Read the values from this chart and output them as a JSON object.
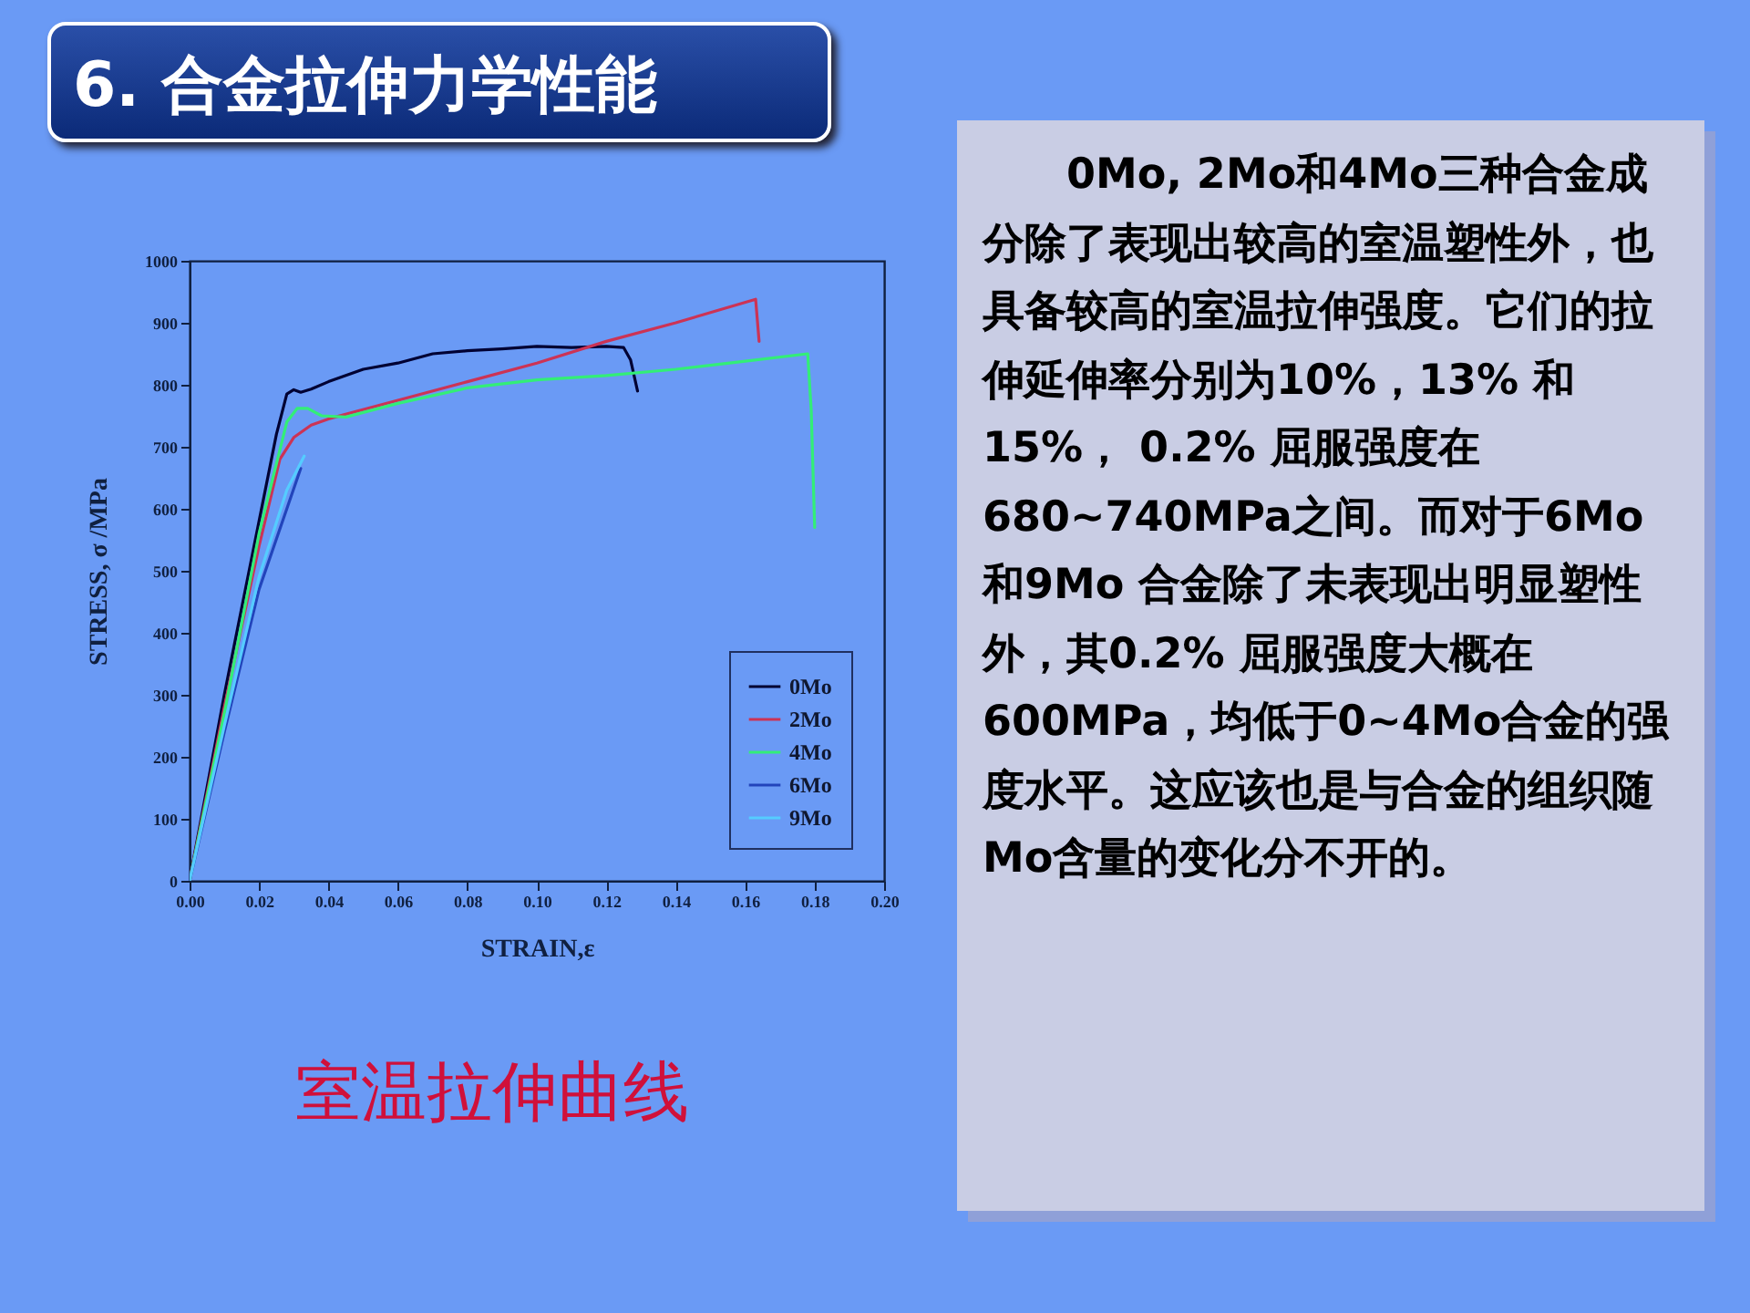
{
  "chart_data": {
    "type": "line",
    "title": "6. 合金拉伸力学性能",
    "xlabel": "STRAIN,ε",
    "ylabel": "STRESS, σ /MPa",
    "xlim": [
      0,
      0.2
    ],
    "xticks": [
      {
        "value": 0,
        "label": "0.00"
      },
      0.02,
      0.04,
      0.06,
      0.08,
      {
        "value": 0.1,
        "label": "0.10"
      },
      0.12,
      0.14,
      0.16,
      0.18,
      {
        "value": 0.2,
        "label": "0.20"
      }
    ],
    "ylim": [
      0,
      1000
    ],
    "yticks": [
      0,
      100,
      200,
      300,
      400,
      500,
      600,
      700,
      800,
      900,
      1000
    ],
    "grid": false,
    "legend": "bottom right",
    "marker": "none",
    "line_style": "solid",
    "series": [
      {
        "name": "0Mo",
        "color": "#000033",
        "x": [
          0,
          0.01,
          0.02,
          0.025,
          0.028,
          0.03,
          0.032,
          0.035,
          0.04,
          0.05,
          0.06,
          0.07,
          0.08,
          0.09,
          0.1,
          0.11,
          0.12,
          0.125,
          0.127,
          0.129
        ],
        "values": [
          0,
          300,
          580,
          720,
          785,
          792,
          788,
          793,
          805,
          825,
          835,
          850,
          855,
          858,
          862,
          860,
          862,
          860,
          840,
          790
        ]
      },
      {
        "name": "2Mo",
        "color": "#cc3355",
        "x": [
          0,
          0.01,
          0.02,
          0.026,
          0.03,
          0.035,
          0.04,
          0.06,
          0.08,
          0.1,
          0.12,
          0.14,
          0.163,
          0.164
        ],
        "values": [
          0,
          280,
          540,
          680,
          715,
          735,
          745,
          775,
          805,
          835,
          870,
          900,
          938,
          870
        ]
      },
      {
        "name": "4Mo",
        "color": "#33ee77",
        "x": [
          0,
          0.01,
          0.02,
          0.028,
          0.031,
          0.034,
          0.038,
          0.045,
          0.06,
          0.08,
          0.1,
          0.12,
          0.14,
          0.16,
          0.178,
          0.179,
          0.18
        ],
        "values": [
          0,
          270,
          560,
          740,
          762,
          762,
          750,
          748,
          770,
          795,
          808,
          815,
          825,
          838,
          850,
          760,
          570
        ]
      },
      {
        "name": "6Mo",
        "color": "#2244bb",
        "x": [
          0,
          0.01,
          0.02,
          0.028,
          0.032
        ],
        "values": [
          0,
          240,
          470,
          600,
          665
        ]
      },
      {
        "name": "9Mo",
        "color": "#55ccff",
        "x": [
          0,
          0.01,
          0.02,
          0.028,
          0.033
        ],
        "values": [
          0,
          250,
          490,
          630,
          685
        ]
      }
    ],
    "annotations": [
      "室温拉伸曲线",
      "0Mo, 2Mo和4Mo三种合金成分除了表现出较高的室温塑性外，也具备较高的室温拉伸强度。它们的拉伸延伸率分别为10%，13% 和15%， 0.2% 屈服强度在680~740MPa之间。而对于6Mo 和9Mo 合金除了未表现出明显塑性外，其0.2% 屈服强度大概在600MPa，均低于0~4Mo合金的强度水平。这应该也是与合金的组织随Mo含量的变化分不开的。"
    ]
  }
}
